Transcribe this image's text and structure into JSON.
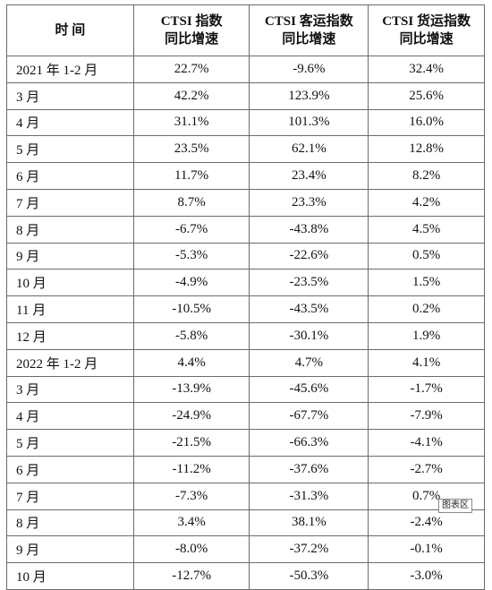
{
  "table": {
    "headers": [
      {
        "line1": "时 间",
        "line2": ""
      },
      {
        "line1": "CTSI 指数",
        "line2": "同比增速"
      },
      {
        "line1": "CTSI 客运指数",
        "line2": "同比增速"
      },
      {
        "line1": "CTSI 货运指数",
        "line2": "同比增速"
      }
    ],
    "rows": [
      [
        "2021 年 1-2 月",
        "22.7%",
        "-9.6%",
        "32.4%"
      ],
      [
        "3 月",
        "42.2%",
        "123.9%",
        "25.6%"
      ],
      [
        "4 月",
        "31.1%",
        "101.3%",
        "16.0%"
      ],
      [
        "5 月",
        "23.5%",
        "62.1%",
        "12.8%"
      ],
      [
        "6 月",
        "11.7%",
        "23.4%",
        "8.2%"
      ],
      [
        "7 月",
        "8.7%",
        "23.3%",
        "4.2%"
      ],
      [
        "8 月",
        "-6.7%",
        "-43.8%",
        "4.5%"
      ],
      [
        "9 月",
        "-5.3%",
        "-22.6%",
        "0.5%"
      ],
      [
        "10 月",
        "-4.9%",
        "-23.5%",
        "1.5%"
      ],
      [
        "11 月",
        "-10.5%",
        "-43.5%",
        "0.2%"
      ],
      [
        "12 月",
        "-5.8%",
        "-30.1%",
        "1.9%"
      ],
      [
        "2022 年 1-2 月",
        "4.4%",
        "4.7%",
        "4.1%"
      ],
      [
        "3 月",
        "-13.9%",
        "-45.6%",
        "-1.7%"
      ],
      [
        "4 月",
        "-24.9%",
        "-67.7%",
        "-7.9%"
      ],
      [
        "5 月",
        "-21.5%",
        "-66.3%",
        "-4.1%"
      ],
      [
        "6 月",
        "-11.2%",
        "-37.6%",
        "-2.7%"
      ],
      [
        "7 月",
        "-7.3%",
        "-31.3%",
        "0.7%"
      ],
      [
        "8 月",
        "3.4%",
        "38.1%",
        "-2.4%"
      ],
      [
        "9 月",
        "-8.0%",
        "-37.2%",
        "-0.1%"
      ],
      [
        "10 月",
        "-12.7%",
        "-50.3%",
        "-3.0%"
      ]
    ]
  },
  "tooltip": {
    "label": "图表区"
  }
}
